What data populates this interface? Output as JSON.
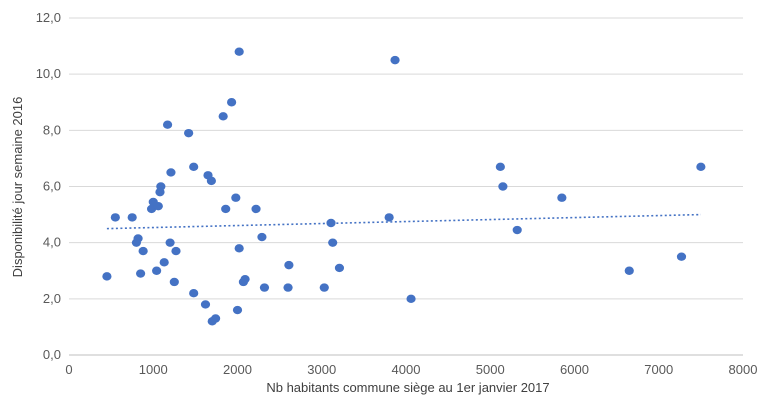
{
  "chart_data": {
    "type": "scatter",
    "title": "",
    "xlabel": "Nb habitants commune siège au 1er janvier 2017",
    "ylabel": "Disponibilité jour semaine 2016",
    "xlim": [
      0,
      8000
    ],
    "ylim": [
      0,
      12
    ],
    "x_ticks": [
      "0",
      "1000",
      "2000",
      "3000",
      "4000",
      "5000",
      "6000",
      "7000",
      "8000"
    ],
    "y_ticks": [
      "0,0",
      "2,0",
      "4,0",
      "6,0",
      "8,0",
      "10,0",
      "12,0"
    ],
    "grid": "horizontal",
    "legend": "none",
    "marker_color": "#4472c4",
    "trendline": {
      "type": "linear",
      "style": "dotted",
      "color": "#4472c4",
      "from": [
        450,
        4.5
      ],
      "to": [
        7500,
        5.0
      ]
    },
    "points": [
      [
        450,
        2.8
      ],
      [
        550,
        4.9
      ],
      [
        750,
        4.9
      ],
      [
        800,
        4.0
      ],
      [
        820,
        4.15
      ],
      [
        850,
        2.9
      ],
      [
        880,
        3.7
      ],
      [
        980,
        5.2
      ],
      [
        1000,
        5.45
      ],
      [
        1040,
        3.0
      ],
      [
        1060,
        5.3
      ],
      [
        1080,
        5.8
      ],
      [
        1090,
        6.0
      ],
      [
        1130,
        3.3
      ],
      [
        1170,
        8.2
      ],
      [
        1200,
        4.0
      ],
      [
        1210,
        6.5
      ],
      [
        1250,
        2.6
      ],
      [
        1270,
        3.7
      ],
      [
        1420,
        7.9
      ],
      [
        1480,
        6.7
      ],
      [
        1480,
        2.2
      ],
      [
        1620,
        1.8
      ],
      [
        1650,
        6.4
      ],
      [
        1690,
        6.2
      ],
      [
        1700,
        1.2
      ],
      [
        1740,
        1.3
      ],
      [
        1830,
        8.5
      ],
      [
        1860,
        5.2
      ],
      [
        1930,
        9.0
      ],
      [
        1980,
        5.6
      ],
      [
        2000,
        1.6
      ],
      [
        2020,
        10.8
      ],
      [
        2020,
        3.8
      ],
      [
        2070,
        2.6
      ],
      [
        2090,
        2.7
      ],
      [
        2220,
        5.2
      ],
      [
        2290,
        4.2
      ],
      [
        2320,
        2.4
      ],
      [
        2600,
        2.4
      ],
      [
        2610,
        3.2
      ],
      [
        3030,
        2.4
      ],
      [
        3110,
        4.7
      ],
      [
        3130,
        4.0
      ],
      [
        3210,
        3.1
      ],
      [
        3800,
        4.9
      ],
      [
        3870,
        10.5
      ],
      [
        4060,
        2.0
      ],
      [
        5120,
        6.7
      ],
      [
        5150,
        6.0
      ],
      [
        5320,
        4.45
      ],
      [
        5850,
        5.6
      ],
      [
        6650,
        3.0
      ],
      [
        7270,
        3.5
      ],
      [
        7500,
        6.7
      ]
    ]
  }
}
